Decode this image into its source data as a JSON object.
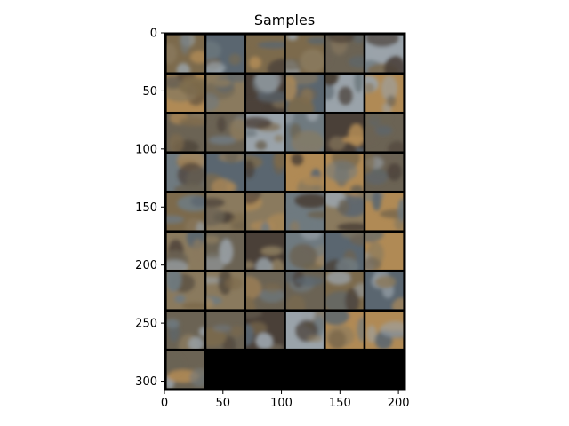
{
  "figure": {
    "title": "Samples"
  },
  "axes": {
    "x_ticks": [
      "0",
      "50",
      "100",
      "150",
      "200"
    ],
    "y_ticks": [
      "0",
      "50",
      "100",
      "150",
      "200",
      "250",
      "300"
    ],
    "x_values": [
      0,
      50,
      100,
      150,
      200
    ],
    "y_values": [
      0,
      50,
      100,
      150,
      200,
      250,
      300
    ],
    "xlim": [
      0,
      206
    ],
    "ylim": [
      308,
      0
    ]
  },
  "image_grid": {
    "rows": 9,
    "cols": 6,
    "sample_count": 49,
    "cell_size": 32,
    "padding": 2,
    "background_color": "#000000",
    "description_palette": [
      "#6b6354",
      "#8a7a5e",
      "#5a6670",
      "#7c6a4c",
      "#9aa3aa",
      "#4a4038",
      "#b08a55",
      "#6f7a80"
    ]
  }
}
